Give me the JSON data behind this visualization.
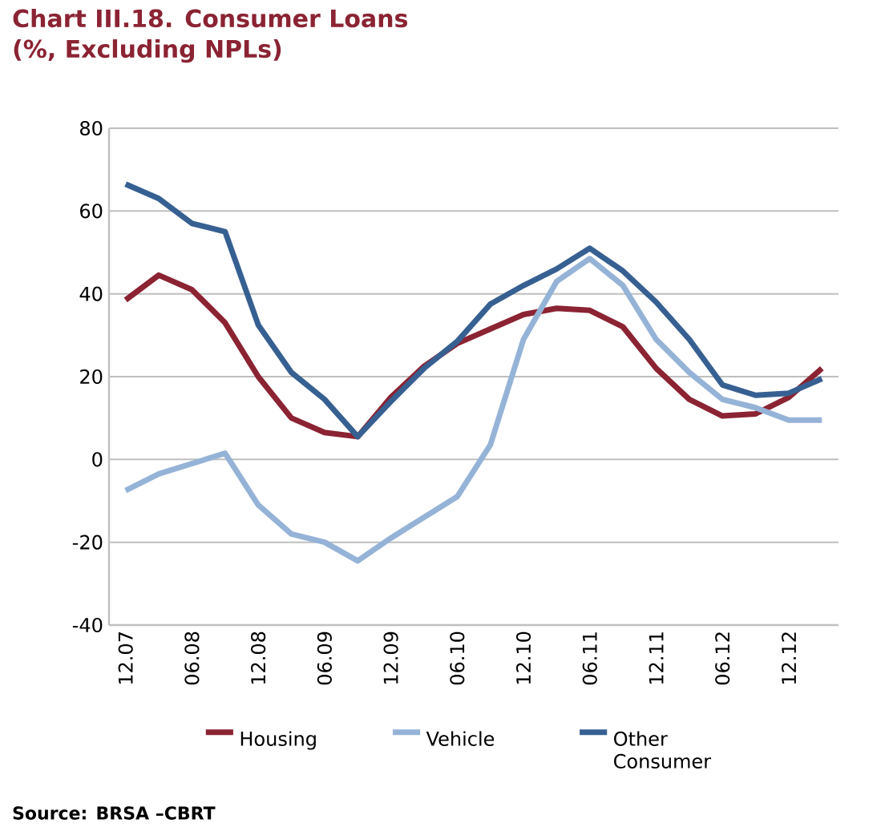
{
  "chart_data": {
    "type": "line",
    "title": "Chart III.18. Consumer Loans",
    "subtitle": "(%, Excluding NPLs)",
    "categories": [
      "12.07",
      null,
      "06.08",
      null,
      "12.08",
      null,
      "06.09",
      null,
      "12.09",
      null,
      "06.10",
      null,
      "12.10",
      null,
      "06.11",
      null,
      "12.11",
      null,
      "06.12",
      null,
      "12.12",
      null
    ],
    "series": [
      {
        "name": "Housing",
        "color": "#8b2332",
        "values": [
          38.5,
          44.5,
          41,
          33,
          20,
          10,
          6.5,
          5.5,
          15,
          22.5,
          28,
          31.5,
          35,
          36.5,
          36,
          32,
          22,
          14.5,
          10.5,
          11,
          15,
          22
        ]
      },
      {
        "name": "Vehicle",
        "color": "#95b3d7",
        "values": [
          -7.5,
          -3.5,
          -1,
          1.5,
          -11,
          -18,
          -20,
          -24.5,
          -19,
          -14,
          -9,
          3.5,
          29,
          43,
          48.5,
          42,
          29,
          21,
          14.5,
          12.5,
          9.5,
          9.5
        ]
      },
      {
        "name": "Other Consumer",
        "color": "#376092",
        "values": [
          66.5,
          63,
          57,
          55,
          32.5,
          21,
          14.5,
          5.5,
          14,
          22,
          28.5,
          37.5,
          42,
          46,
          51,
          45.5,
          38,
          29,
          18,
          15.5,
          16,
          19.5
        ]
      }
    ],
    "ylim": [
      -40,
      80
    ],
    "yticks": [
      -40,
      -20,
      0,
      20,
      40,
      60,
      80
    ],
    "grid": "y",
    "legend": "bottom",
    "marker": "none",
    "line_style": "solid",
    "annotations": [
      "Source: BRSA –CBRT"
    ]
  }
}
